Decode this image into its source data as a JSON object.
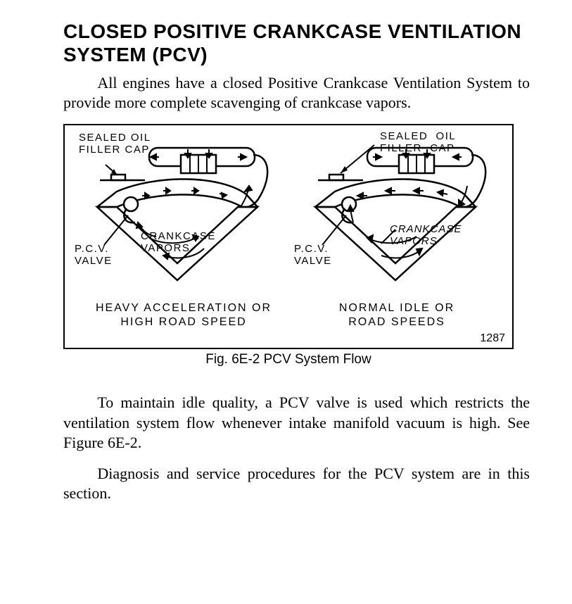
{
  "title": "CLOSED POSITIVE CRANKCASE VENTILATION SYSTEM (PCV)",
  "para1": "All engines have a closed Positive Crankcase Ventilation System to provide more complete scavenging of crankcase vapors.",
  "figure": {
    "caption": "Fig. 6E-2 PCV System Flow",
    "number": "1287",
    "left": {
      "sealed_cap": "SEALED OIL\nFILLER CAP",
      "pcv_valve": "P.C.V.\nVALVE",
      "crankcase": "CRANKCASE\nVAPORS",
      "sub": "HEAVY  ACCELERATION OR\nHIGH  ROAD  SPEED"
    },
    "right": {
      "sealed_cap": "SEALED  OIL\nFILLER  CAP",
      "pcv_valve": "P.C.V.\nVALVE",
      "crankcase": "CRANKCASE\nVAPORS",
      "sub": "NORMAL   IDLE  OR\nROAD  SPEEDS"
    },
    "stroke": "#000000",
    "bg": "#ffffff"
  },
  "para2": "To maintain idle quality, a PCV valve is used which restricts the ventilation system flow whenever intake manifold vacuum is high. See Figure 6E-2.",
  "para3": "Diagnosis and service procedures for the PCV system are in this section."
}
